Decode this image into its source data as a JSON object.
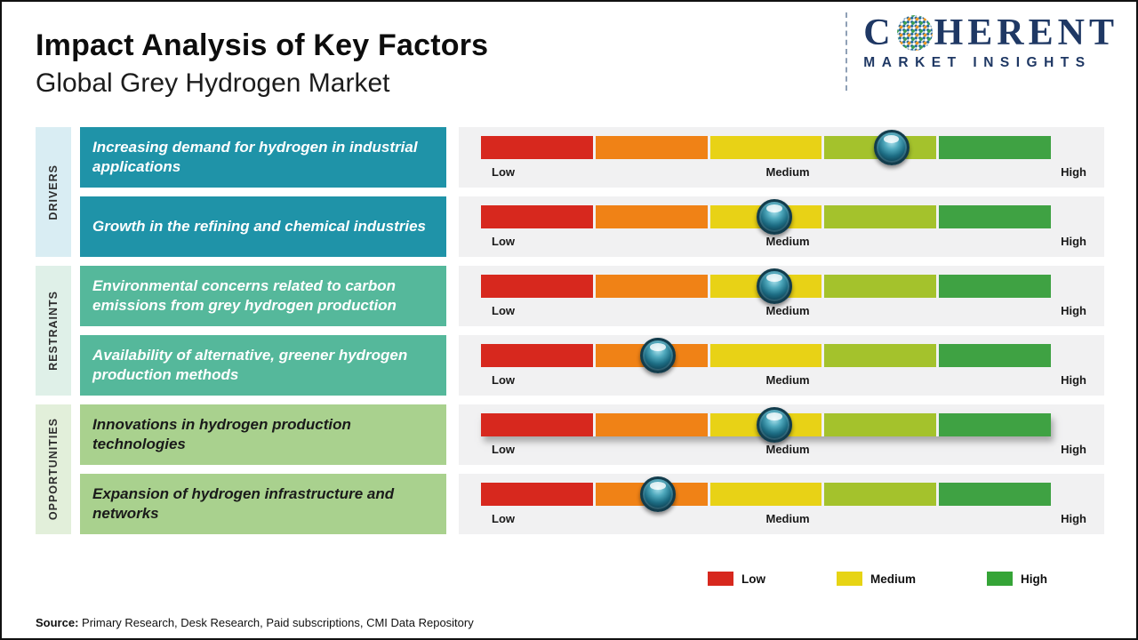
{
  "page": {
    "title": "Impact Analysis of Key Factors",
    "subtitle": "Global Grey Hydrogen Market"
  },
  "logo": {
    "prefix": "C",
    "suffix": "HERENT",
    "tagline": "MARKET INSIGHTS",
    "brand_color": "#1F3864"
  },
  "groups": [
    {
      "label": "DRIVERS"
    },
    {
      "label": "RESTRAINTS"
    },
    {
      "label": "OPPORTUNITIES"
    }
  ],
  "scale": {
    "low": "Low",
    "medium": "Medium",
    "high": "High"
  },
  "rows": [
    {
      "group": "DRIVERS",
      "factor": "Increasing demand for hydrogen in industrial applications",
      "marker_left": "72%",
      "impact_level": "Medium-High"
    },
    {
      "group": "DRIVERS",
      "factor": "Growth in the refining and chemical industries",
      "marker_left": "51.5%",
      "impact_level": "Medium"
    },
    {
      "group": "RESTRAINTS",
      "factor": "Environmental concerns related to carbon emissions from grey hydrogen production",
      "marker_left": "51.5%",
      "impact_level": "Medium"
    },
    {
      "group": "RESTRAINTS",
      "factor": "Availability of alternative, greener hydrogen production methods",
      "marker_left": "31%",
      "impact_level": "Low-Medium"
    },
    {
      "group": "OPPORTUNITIES",
      "factor": "Innovations in hydrogen production technologies",
      "marker_left": "51.5%",
      "impact_level": "Medium"
    },
    {
      "group": "OPPORTUNITIES",
      "factor": "Expansion of hydrogen infrastructure and networks",
      "marker_left": "31%",
      "impact_level": "Low-Medium"
    }
  ],
  "colors": {
    "seg_red": "#D7281E",
    "seg_orange": "#F08216",
    "seg_yellow": "#E8D216",
    "seg_yellowgreen": "#A4C22C",
    "seg_green": "#3FA243",
    "card_drivers": "#1F93A8",
    "card_restraints": "#55B89B",
    "card_opps": "#A9D18E",
    "legend_red": "#D7281E",
    "legend_yellow": "#E7D414",
    "legend_green": "#35A437"
  },
  "legend": {
    "low": "Low",
    "medium": "Medium",
    "high": "High"
  },
  "source": {
    "label": "Source:",
    "text": " Primary Research, Desk Research, Paid subscriptions, CMI Data Repository"
  },
  "chart_data": {
    "type": "scatter",
    "title": "Impact Analysis of Key Factors",
    "subtitle": "Global Grey Hydrogen Market",
    "x_axis": {
      "labels": [
        "Low",
        "Medium",
        "High"
      ],
      "range_pct": [
        0,
        100
      ],
      "segment_colors": [
        "#D7281E",
        "#F08216",
        "#E8D216",
        "#A4C22C",
        "#3FA243"
      ]
    },
    "points": [
      {
        "group": "Drivers",
        "factor": "Increasing demand for hydrogen in industrial applications",
        "impact_pct": 72,
        "impact_level": "Medium-High"
      },
      {
        "group": "Drivers",
        "factor": "Growth in the refining and chemical industries",
        "impact_pct": 52,
        "impact_level": "Medium"
      },
      {
        "group": "Restraints",
        "factor": "Environmental concerns related to carbon emissions from grey hydrogen production",
        "impact_pct": 52,
        "impact_level": "Medium"
      },
      {
        "group": "Restraints",
        "factor": "Availability of alternative, greener hydrogen production methods",
        "impact_pct": 31,
        "impact_level": "Low-Medium"
      },
      {
        "group": "Opportunities",
        "factor": "Innovations in hydrogen production technologies",
        "impact_pct": 52,
        "impact_level": "Medium"
      },
      {
        "group": "Opportunities",
        "factor": "Expansion of hydrogen infrastructure and networks",
        "impact_pct": 31,
        "impact_level": "Low-Medium"
      }
    ],
    "legend": [
      {
        "label": "Low",
        "color": "#D7281E"
      },
      {
        "label": "Medium",
        "color": "#E7D414"
      },
      {
        "label": "High",
        "color": "#35A437"
      }
    ],
    "legend_position": "bottom-right"
  }
}
